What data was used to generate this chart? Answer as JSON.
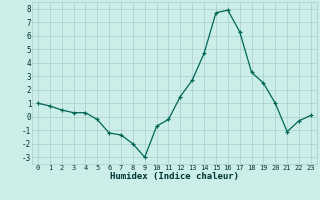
{
  "x": [
    0,
    1,
    2,
    3,
    4,
    5,
    6,
    7,
    8,
    9,
    10,
    11,
    12,
    13,
    14,
    15,
    16,
    17,
    18,
    19,
    20,
    21,
    22,
    23
  ],
  "y": [
    1.0,
    0.8,
    0.5,
    0.3,
    0.3,
    -0.2,
    -1.2,
    -1.35,
    -2.0,
    -3.0,
    -0.7,
    -0.2,
    1.5,
    2.7,
    4.7,
    7.7,
    7.9,
    6.3,
    3.3,
    2.5,
    1.0,
    -1.1,
    -0.3,
    0.1
  ],
  "title": "",
  "xlabel": "Humidex (Indice chaleur)",
  "ylabel": "",
  "ylim": [
    -3.5,
    8.5
  ],
  "xlim": [
    -0.5,
    23.5
  ],
  "yticks": [
    -3,
    -2,
    -1,
    0,
    1,
    2,
    3,
    4,
    5,
    6,
    7,
    8
  ],
  "xticks": [
    0,
    1,
    2,
    3,
    4,
    5,
    6,
    7,
    8,
    9,
    10,
    11,
    12,
    13,
    14,
    15,
    16,
    17,
    18,
    19,
    20,
    21,
    22,
    23
  ],
  "line_color": "#006658",
  "marker_color": "#006658",
  "bg_color": "#cceee8",
  "grid_color": "#aacccc",
  "tick_label_color": "#003333",
  "xlabel_color": "#003333"
}
